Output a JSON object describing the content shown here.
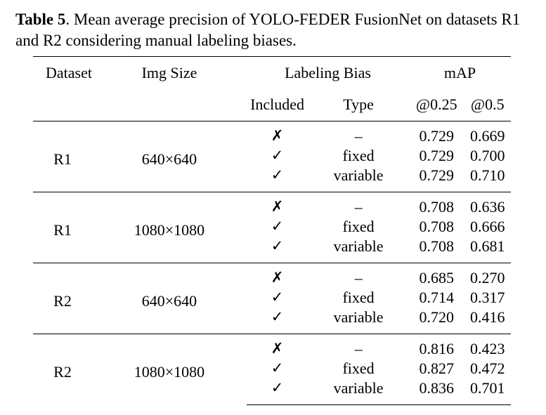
{
  "caption": {
    "label": "Table 5",
    "text": ".  Mean average precision of YOLO-FEDER FusionNet on datasets R1 and R2 considering manual labeling biases."
  },
  "header": {
    "dataset": "Dataset",
    "img_size": "Img Size",
    "labeling_bias": "Labeling Bias",
    "map": "mAP",
    "included": "Included",
    "type": "Type",
    "map25": "@0.25",
    "map50": "@0.5"
  },
  "groups": [
    {
      "dataset": "R1",
      "img_size": "640×640",
      "rows": [
        {
          "included": "✗",
          "type": "–",
          "map25": "0.729",
          "map50": "0.669"
        },
        {
          "included": "✓",
          "type": "fixed",
          "map25": "0.729",
          "map50": "0.700"
        },
        {
          "included": "✓",
          "type": "variable",
          "map25": "0.729",
          "map50": "0.710"
        }
      ]
    },
    {
      "dataset": "R1",
      "img_size": "1080×1080",
      "rows": [
        {
          "included": "✗",
          "type": "–",
          "map25": "0.708",
          "map50": "0.636"
        },
        {
          "included": "✓",
          "type": "fixed",
          "map25": "0.708",
          "map50": "0.666"
        },
        {
          "included": "✓",
          "type": "variable",
          "map25": "0.708",
          "map50": "0.681"
        }
      ]
    },
    {
      "dataset": "R2",
      "img_size": "640×640",
      "rows": [
        {
          "included": "✗",
          "type": "–",
          "map25": "0.685",
          "map50": "0.270"
        },
        {
          "included": "✓",
          "type": "fixed",
          "map25": "0.714",
          "map50": "0.317"
        },
        {
          "included": "✓",
          "type": "variable",
          "map25": "0.720",
          "map50": "0.416"
        }
      ]
    },
    {
      "dataset": "R2",
      "img_size": "1080×1080",
      "rows": [
        {
          "included": "✗",
          "type": "–",
          "map25": "0.816",
          "map50": "0.423"
        },
        {
          "included": "✓",
          "type": "fixed",
          "map25": "0.827",
          "map50": "0.472"
        },
        {
          "included": "✓",
          "type": "variable",
          "map25": "0.836",
          "map50": "0.701"
        }
      ]
    }
  ]
}
